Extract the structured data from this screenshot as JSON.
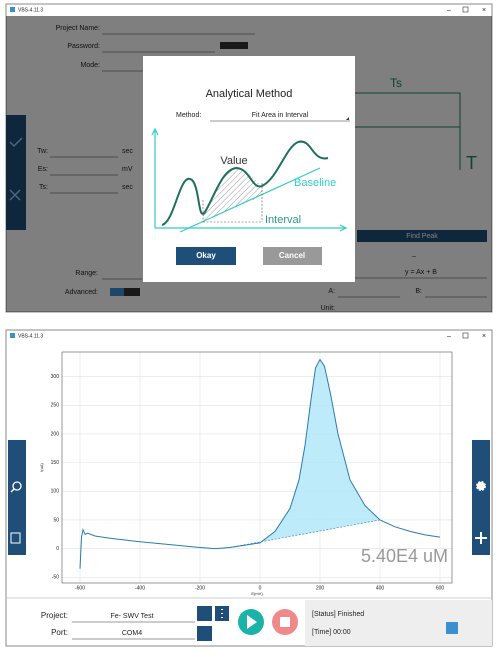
{
  "top_window": {
    "title": "VBS-4.11.3",
    "form": {
      "project_name": "Project Name:",
      "password": "Password:",
      "mode": "Mode:",
      "tw": "Tw:",
      "tw_unit": "sec",
      "es": "Es:",
      "es_unit": "mV",
      "ts": "Ts:",
      "ts_unit": "sec",
      "range": "Range:",
      "advanced": "Advanced:"
    },
    "side": {
      "ts": "Ts",
      "t": "T",
      "find_peak": "Find Peak",
      "dash": "–",
      "formula": "y = Ax + B",
      "a": "A:",
      "b": "B:",
      "unit": "Unit:"
    },
    "dialog": {
      "title": "Analytical Method",
      "method_label": "Method:",
      "method_value": "Fit Area in Interval",
      "value": "Value",
      "baseline": "Baseline",
      "interval": "Interval",
      "okay": "Okay",
      "cancel": "Cancel"
    }
  },
  "bottom_window": {
    "title": "VBS-4.11.3",
    "plot": {
      "x_label": "E(mV)",
      "y_label": "I(uA)",
      "xlim": [
        -660,
        640
      ],
      "ylim": [
        -60,
        343
      ],
      "xticks": [
        -600,
        -400,
        -200,
        0,
        200,
        400,
        600
      ],
      "yticks": [
        -50,
        0,
        50,
        100,
        150,
        200,
        250,
        300
      ],
      "grid": true,
      "color": "#2a7ab0",
      "fill_color": "#aee6f7",
      "curve": {
        "x": [
          -600,
          -595,
          -590,
          -583,
          -575,
          -550,
          -500,
          -400,
          -300,
          -200,
          -150,
          -100,
          0,
          50,
          100,
          130,
          150,
          170,
          185,
          200,
          215,
          235,
          260,
          300,
          350,
          400,
          450,
          500,
          550,
          600
        ],
        "y": [
          -35,
          20,
          33,
          25,
          27,
          22,
          18,
          12,
          7,
          2,
          0,
          2,
          10,
          30,
          70,
          120,
          180,
          260,
          315,
          330,
          318,
          270,
          200,
          120,
          75,
          50,
          38,
          30,
          24,
          20
        ]
      },
      "baseline": {
        "x": [
          -100,
          400
        ],
        "y": [
          2,
          50
        ]
      }
    },
    "concentration": "5.40E4 uM",
    "project_label": "Project:",
    "project_value": "Fe- SWV Test",
    "port_label": "Port:",
    "port_value": "COM4",
    "status": "[Status] Finished",
    "time": "[Time] 00:00"
  }
}
